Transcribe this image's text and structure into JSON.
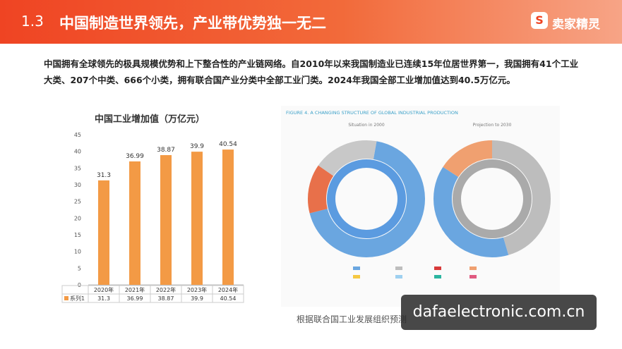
{
  "header": {
    "section": "1.3",
    "title": "中国制造世界领先，产业带优势独一无二",
    "brand": "卖家精灵"
  },
  "intro": "中国拥有全球领先的极具规模优势和上下整合性的产业链网络。自2010年以来我国制造业已连续15年位居世界第一，我国拥有41个工业大类、207个中类、666个小类，拥有联合国产业分类中全部工业门类。2024年我国全部工业增加值达到40.5万亿元。",
  "chart_data": {
    "type": "bar",
    "title": "中国工业增加值（万亿元）",
    "categories": [
      "2020年",
      "2021年",
      "2022年",
      "2023年",
      "2024年"
    ],
    "series": [
      {
        "name": "系列1",
        "color": "#f39a45",
        "values": [
          31.3,
          36.99,
          38.87,
          39.9,
          40.54
        ]
      }
    ],
    "ylim": [
      0,
      45
    ],
    "yticks": [
      0,
      5,
      10,
      15,
      20,
      25,
      30,
      35,
      40,
      45
    ],
    "grid": false,
    "data_table": true
  },
  "figure": {
    "title": "FIGURE 4. A CHANGING STRUCTURE OF GLOBAL INDUSTRIAL PRODUCTION",
    "left": "Situation in 2000",
    "right": "Projection to 2030"
  },
  "caption": "根据联合国工业发展组织预测",
  "watermark": "dafaelectronic.com.cn"
}
